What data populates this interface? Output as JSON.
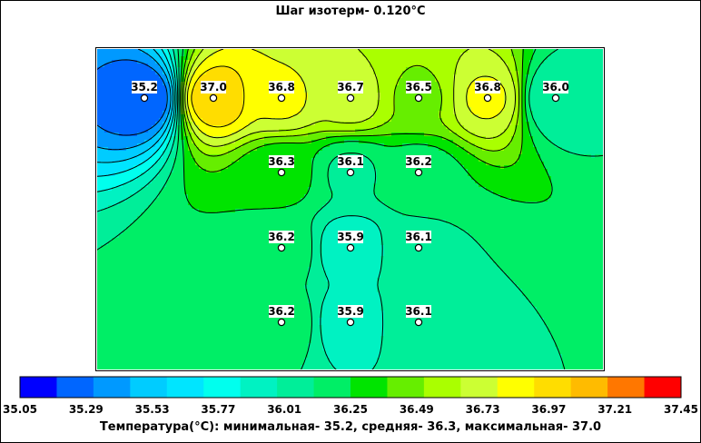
{
  "chart_data": {
    "type": "heatmap",
    "title": "Шаг изотерм- 0.120°C",
    "legend": {
      "colors": [
        "#0000ff",
        "#0066ff",
        "#0099ff",
        "#00ccff",
        "#00e5ff",
        "#00ffee",
        "#00f2c2",
        "#00ee99",
        "#00ee66",
        "#00e400",
        "#66ee00",
        "#aaff00",
        "#ccff33",
        "#ffff00",
        "#ffdd00",
        "#ffbb00",
        "#ff7700",
        "#ff0000"
      ],
      "ticks": [
        "35.05",
        "35.29",
        "35.53",
        "35.77",
        "36.01",
        "36.25",
        "36.49",
        "36.73",
        "36.97",
        "37.21",
        "37.45"
      ]
    },
    "points": [
      {
        "label": "35.2",
        "value": 35.2,
        "col": 0,
        "row": 0
      },
      {
        "label": "37.0",
        "value": 37.0,
        "col": 1,
        "row": 0
      },
      {
        "label": "36.8",
        "value": 36.8,
        "col": 2,
        "row": 0
      },
      {
        "label": "36.7",
        "value": 36.7,
        "col": 3,
        "row": 0
      },
      {
        "label": "36.5",
        "value": 36.5,
        "col": 4,
        "row": 0
      },
      {
        "label": "36.8",
        "value": 36.8,
        "col": 5,
        "row": 0
      },
      {
        "label": "36.0",
        "value": 36.0,
        "col": 6,
        "row": 0
      },
      {
        "label": "36.3",
        "value": 36.3,
        "col": 2,
        "row": 1
      },
      {
        "label": "36.1",
        "value": 36.1,
        "col": 3,
        "row": 1
      },
      {
        "label": "36.2",
        "value": 36.2,
        "col": 4,
        "row": 1
      },
      {
        "label": "36.2",
        "value": 36.2,
        "col": 2,
        "row": 2
      },
      {
        "label": "35.9",
        "value": 35.9,
        "col": 3,
        "row": 2
      },
      {
        "label": "36.1",
        "value": 36.1,
        "col": 4,
        "row": 2
      },
      {
        "label": "36.2",
        "value": 36.2,
        "col": 2,
        "row": 3
      },
      {
        "label": "35.9",
        "value": 35.9,
        "col": 3,
        "row": 3
      },
      {
        "label": "36.1",
        "value": 36.1,
        "col": 4,
        "row": 3
      }
    ],
    "summary": "Температура(°С): минимальная-   35.2,  средняя-   36.3,  максимальная-   37.0"
  }
}
